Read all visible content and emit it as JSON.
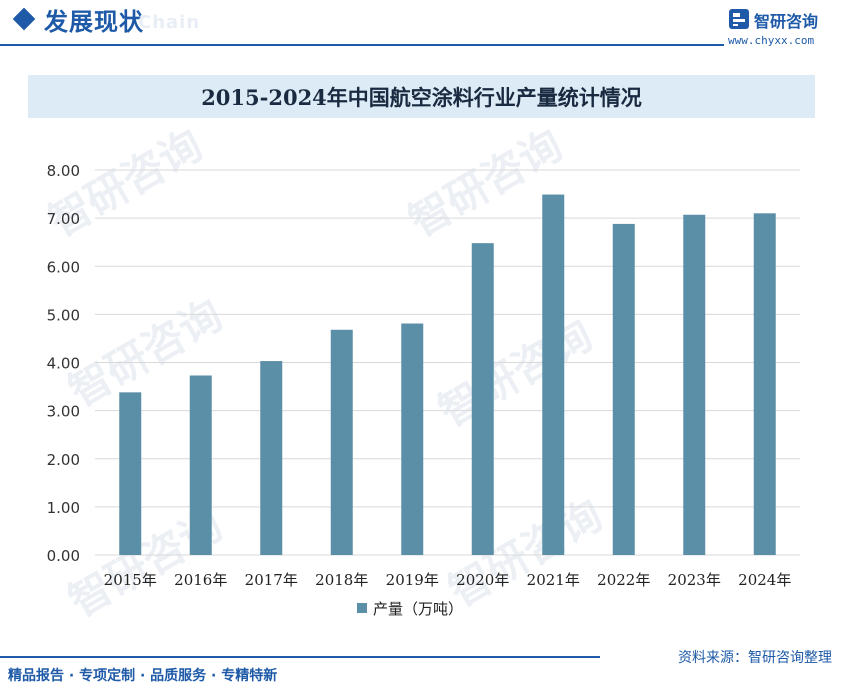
{
  "header": {
    "title": "发展现状",
    "ghost_text": "Chain"
  },
  "brand": {
    "name": "智研咨询",
    "url": "www.chyxx.com",
    "logo_icon": "brand-logo-icon"
  },
  "watermark": "智研咨询",
  "chart_data": {
    "type": "bar",
    "title": "2015-2024年中国航空涂料行业产量统计情况",
    "categories": [
      "2015年",
      "2016年",
      "2017年",
      "2018年",
      "2019年",
      "2020年",
      "2021年",
      "2022年",
      "2023年",
      "2024年"
    ],
    "series": [
      {
        "name": "产量（万吨）",
        "values": [
          3.38,
          3.73,
          4.03,
          4.68,
          4.81,
          6.48,
          7.49,
          6.88,
          7.07,
          7.1
        ],
        "color": "#5b8fa8"
      }
    ],
    "ylim": [
      0,
      8
    ],
    "yticks": [
      "0.00",
      "1.00",
      "2.00",
      "3.00",
      "4.00",
      "5.00",
      "6.00",
      "7.00",
      "8.00"
    ],
    "grid": true,
    "legend_position": "bottom"
  },
  "footer": {
    "source": "资料来源：智研咨询整理",
    "tagline": "精品报告 · 专项定制 · 品质服务 · 专精特新"
  }
}
